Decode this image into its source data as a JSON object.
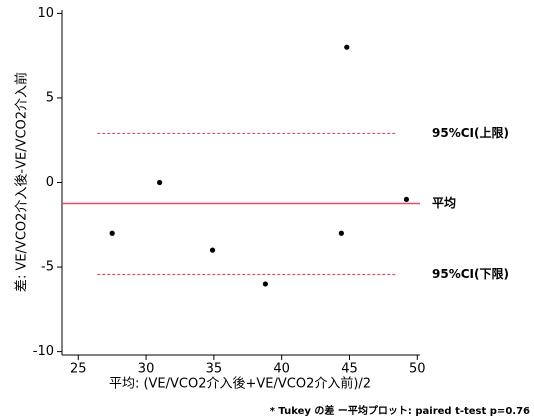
{
  "chart_data": {
    "type": "scatter",
    "x_label": "平均: (VE/VCO2介入後+VE/VCO2介入前)/2",
    "y_label": "差: VE/VCO2介入後-VE/VCO2介入前",
    "footnote": "* Tukey の差 ー平均プロット: paired t-test p=0.76",
    "x": [
      27.5,
      31,
      34.9,
      38.8,
      44.4,
      44.8,
      49.2
    ],
    "series": [
      {
        "color": "#000000",
        "values": [
          -3,
          0,
          -4,
          -6,
          -3,
          8,
          -1
        ]
      }
    ],
    "xlim": [
      23.8,
      50.2
    ],
    "ylim": [
      -10.2,
      10.2
    ],
    "xticks": [
      25,
      30,
      35,
      40,
      45,
      50
    ],
    "yticks": [
      -10,
      -5,
      0,
      5,
      10
    ],
    "grid": false,
    "hlines": [
      {
        "label": "95%CI(上限)",
        "value": 2.9,
        "style": "dashed",
        "color": "#e0506a",
        "xrange": [
          26.4,
          48.4
        ]
      },
      {
        "label": "平均",
        "value": -1.24,
        "style": "solid",
        "color": "#e0506a"
      },
      {
        "label": "95%CI(下限)",
        "value": -5.44,
        "style": "dashed",
        "color": "#e0506a",
        "xrange": [
          26.4,
          48.4
        ]
      }
    ]
  }
}
